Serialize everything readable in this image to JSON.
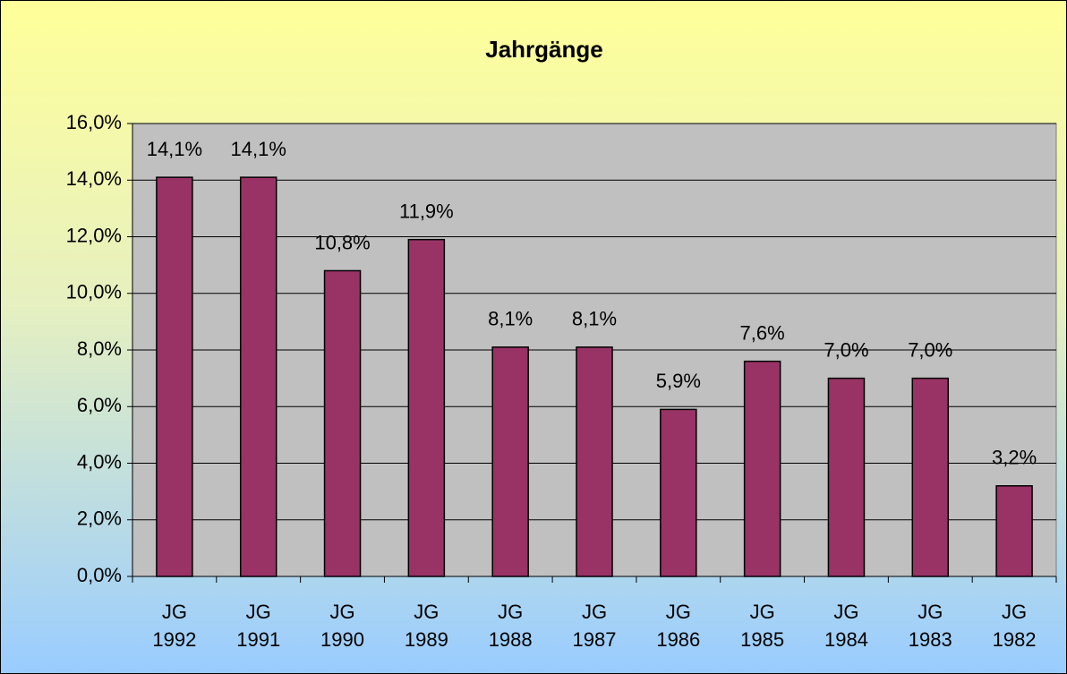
{
  "chart_data": {
    "type": "bar",
    "title": "Jahrgänge",
    "categories": [
      "JG 1992",
      "JG 1991",
      "JG 1990",
      "JG 1989",
      "JG 1988",
      "JG 1987",
      "JG 1986",
      "JG 1985",
      "JG 1984",
      "JG 1983",
      "JG 1982"
    ],
    "values": [
      14.1,
      14.1,
      10.8,
      11.9,
      8.1,
      8.1,
      5.9,
      7.6,
      7.0,
      7.0,
      3.2
    ],
    "value_labels": [
      "14,1%",
      "14,1%",
      "10,8%",
      "11,9%",
      "8,1%",
      "8,1%",
      "5,9%",
      "7,6%",
      "7,0%",
      "7,0%",
      "3,2%"
    ],
    "color": "#993366",
    "ylim": [
      0,
      16
    ],
    "yticks": [
      {
        "value": 0,
        "label": "0,0%"
      },
      {
        "value": 2,
        "label": "2,0%"
      },
      {
        "value": 4,
        "label": "4,0%"
      },
      {
        "value": 6,
        "label": "6,0%"
      },
      {
        "value": 8,
        "label": "8,0%"
      },
      {
        "value": 10,
        "label": "10,0%"
      },
      {
        "value": 12,
        "label": "12,0%"
      },
      {
        "value": 14,
        "label": "14,0%"
      },
      {
        "value": 16,
        "label": "16,0%"
      }
    ],
    "grid": true
  }
}
